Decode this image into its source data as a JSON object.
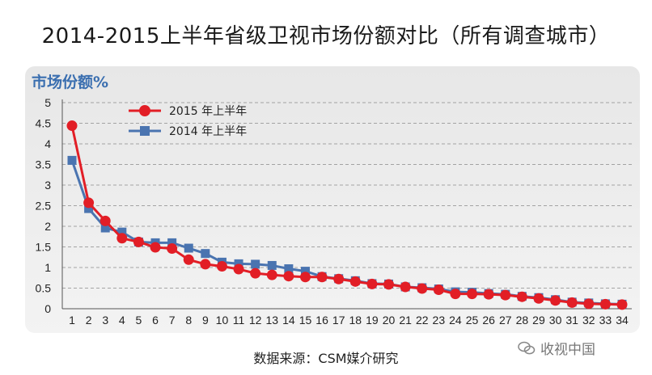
{
  "page_title": "2014-2015上半年省级卫视市场份额对比（所有调查城市）",
  "source_note": "数据来源：CSM媒介研究",
  "watermark": "收视中国",
  "colors": {
    "series_2015": "#e21e26",
    "series_2014": "#4a74b0",
    "ylabel": "#3b6fb0"
  },
  "chart_data": {
    "type": "line",
    "title": "",
    "ylabel": "市场份额%",
    "xlabel": "",
    "ylim": [
      0,
      5
    ],
    "yticks": [
      "0",
      "0.5",
      "1",
      "1.5",
      "2",
      "2.5",
      "3",
      "3.5",
      "4",
      "4.5",
      "5"
    ],
    "grid": true,
    "legend": "top-left",
    "x": [
      "1",
      "2",
      "3",
      "4",
      "5",
      "6",
      "7",
      "8",
      "9",
      "10",
      "11",
      "12",
      "13",
      "14",
      "15",
      "16",
      "17",
      "18",
      "19",
      "20",
      "21",
      "22",
      "23",
      "24",
      "25",
      "26",
      "27",
      "28",
      "29",
      "30",
      "31",
      "32",
      "33",
      "34"
    ],
    "series": [
      {
        "name": "2015 年上半年",
        "marker": "circle",
        "values": [
          4.44,
          2.57,
          2.13,
          1.71,
          1.62,
          1.49,
          1.46,
          1.19,
          1.08,
          1.03,
          0.96,
          0.86,
          0.82,
          0.79,
          0.77,
          0.77,
          0.72,
          0.66,
          0.6,
          0.59,
          0.53,
          0.49,
          0.46,
          0.36,
          0.36,
          0.35,
          0.33,
          0.29,
          0.25,
          0.2,
          0.15,
          0.12,
          0.11,
          0.1
        ]
      },
      {
        "name": "2014 年上半年",
        "marker": "square",
        "values": [
          3.6,
          2.43,
          1.96,
          1.86,
          1.62,
          1.6,
          1.6,
          1.47,
          1.34,
          1.13,
          1.09,
          1.08,
          1.05,
          0.97,
          0.91,
          0.78,
          0.73,
          0.68,
          0.61,
          0.6,
          0.53,
          0.51,
          0.48,
          0.41,
          0.4,
          0.37,
          0.35,
          0.3,
          0.27,
          0.22,
          0.16,
          0.14,
          0.12,
          0.11
        ]
      }
    ]
  }
}
